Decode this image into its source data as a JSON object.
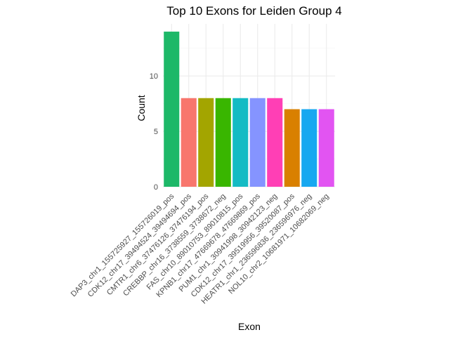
{
  "chart_data": {
    "type": "bar",
    "title": "Top 10 Exons for Leiden Group 4",
    "xlabel": "Exon",
    "ylabel": "Count",
    "ylim": [
      0,
      14.7
    ],
    "yticks": [
      0,
      5,
      10
    ],
    "grid": true,
    "legend": "none",
    "categories": [
      "DAP3_chr1_155725927_155726019_pos",
      "CDK12_chr17_39494524_39494694_pos",
      "CMTR1_chr6_37476126_37476194_pos",
      "CREBBP_chr16_3738559_3738672_neg",
      "FAS_chr10_89010753_89010815_pos",
      "KPNB1_chr17_47669678_47669869_pos",
      "PUM1_chr1_30941998_30942123_neg",
      "CDK12_chr17_39519956_39520087_pos",
      "HEATR1_chr1_236596836_236596976_neg",
      "NOL10_chr2_10681971_10682069_neg"
    ],
    "values": [
      14,
      8,
      8,
      8,
      8,
      8,
      8,
      7,
      7,
      7
    ],
    "colors": [
      "#1DB868",
      "#F8766D",
      "#A3A500",
      "#39B600",
      "#14BBC4",
      "#8594FF",
      "#FF3FB5",
      "#D98000",
      "#17A8F0",
      "#E254F2"
    ]
  }
}
